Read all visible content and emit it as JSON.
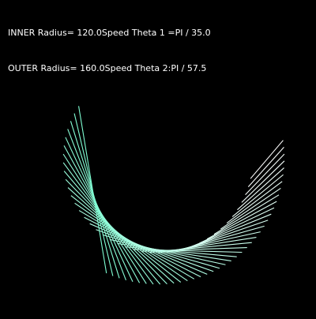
{
  "hud": {
    "inner_label": "INNER Radius",
    "inner_value": "= 120.0",
    "speed1_label": "Speed Theta 1 =",
    "speed1_value": "PI / 35.0",
    "outer_label": "OUTER Radius",
    "outer_value": "= 160.0",
    "speed2_label": "Speed Theta 2:",
    "speed2_value": "PI / 57.5"
  },
  "sketch": {
    "inner_radius": 120.0,
    "outer_radius": 160.0,
    "speed_theta_1_divisor": 35.0,
    "speed_theta_2_divisor": 57.5,
    "background_color": "#000000",
    "stroke_color_start": "#ffffff",
    "stroke_color_end": "#7fffd4"
  }
}
